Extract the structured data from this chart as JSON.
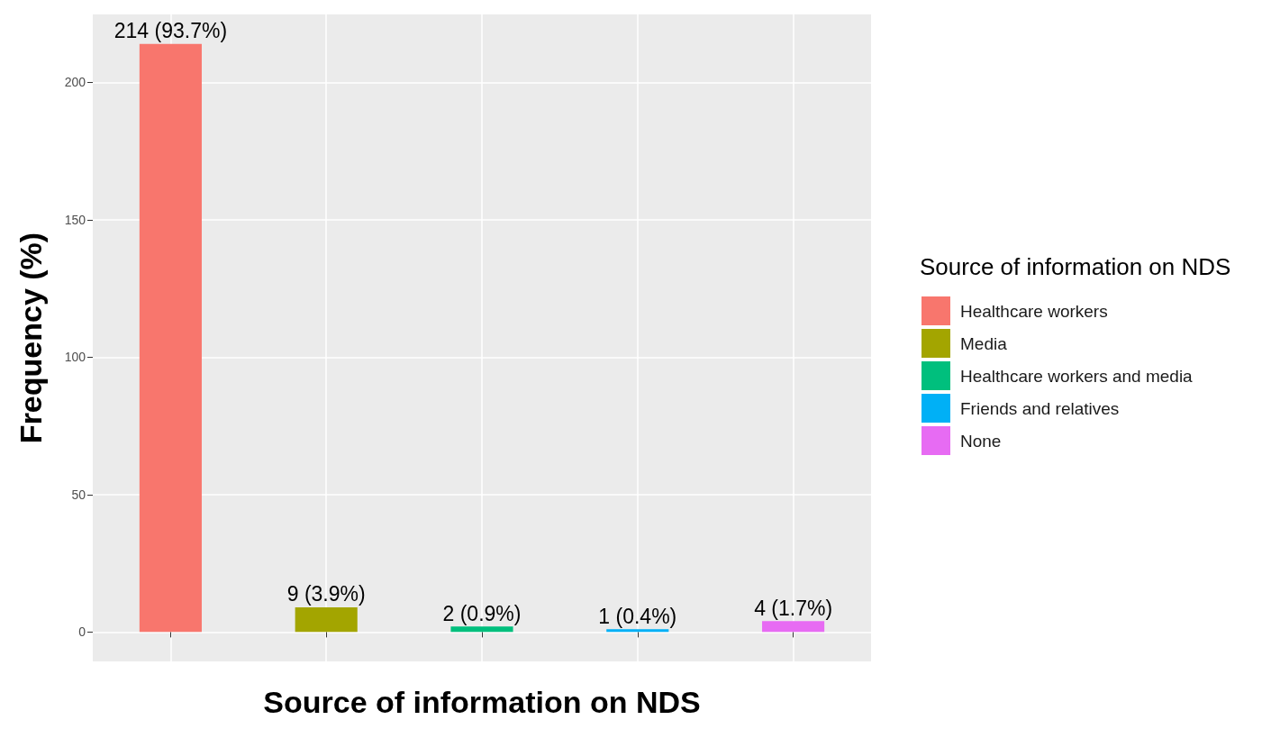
{
  "chart_data": {
    "type": "bar",
    "xlabel": "Source of information on NDS",
    "ylabel": "Frequency (%)",
    "legend_title": "Source of information on NDS",
    "categories": [
      null,
      null,
      null,
      null,
      null
    ],
    "series": [
      {
        "name": "Healthcare workers",
        "color": "#f8766d",
        "values": [
          214,
          null,
          null,
          null,
          null
        ],
        "value_labels": [
          "214 (93.7%)",
          null,
          null,
          null,
          null
        ]
      },
      {
        "name": "Media",
        "color": "#a3a500",
        "values": [
          null,
          9,
          null,
          null,
          null
        ],
        "value_labels": [
          null,
          "9 (3.9%)",
          null,
          null,
          null
        ]
      },
      {
        "name": "Healthcare workers and media",
        "color": "#00bf7d",
        "values": [
          null,
          null,
          2,
          null,
          null
        ],
        "value_labels": [
          null,
          null,
          "2 (0.9%)",
          null,
          null
        ]
      },
      {
        "name": "Friends and relatives",
        "color": "#00b0f6",
        "values": [
          null,
          null,
          null,
          1,
          null
        ],
        "value_labels": [
          null,
          null,
          null,
          "1 (0.4%)",
          null
        ]
      },
      {
        "name": "None",
        "color": "#e76bf3",
        "values": [
          null,
          null,
          null,
          null,
          4
        ],
        "value_labels": [
          null,
          null,
          null,
          null,
          "4 (1.7%)"
        ]
      }
    ],
    "ylim": [
      -10.7,
      224.7
    ],
    "yticks": [
      0,
      50,
      100,
      150,
      200
    ],
    "grid": true,
    "legend": "right"
  }
}
